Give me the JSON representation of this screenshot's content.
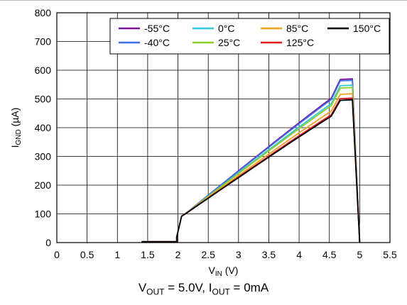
{
  "chart_data": {
    "type": "line",
    "xlabel": {
      "main": "V",
      "sub": "IN",
      "unit": " (V)"
    },
    "ylabel": {
      "main": "I",
      "sub": "GND",
      "unit": " (µA)"
    },
    "xlim": [
      0,
      5.5
    ],
    "ylim": [
      0,
      800
    ],
    "x_ticks": [
      "0",
      "0.5",
      "1",
      "1.5",
      "2",
      "2.5",
      "3",
      "3.5",
      "4",
      "4.5",
      "5",
      "5.5"
    ],
    "y_ticks": [
      "0",
      "100",
      "200",
      "300",
      "400",
      "500",
      "600",
      "700",
      "800"
    ],
    "grid": true,
    "legend_position": "top-right",
    "series": [
      {
        "name": "-55°C",
        "color": "#7a0f9c",
        "peak_x": 4.88,
        "peak_y": 570
      },
      {
        "name": "-40°C",
        "color": "#3f6fe6",
        "peak_x": 4.88,
        "peak_y": 565
      },
      {
        "name": "0°C",
        "color": "#33c6d9",
        "peak_x": 4.88,
        "peak_y": 548
      },
      {
        "name": "25°C",
        "color": "#8ccf2a",
        "peak_x": 4.88,
        "peak_y": 540
      },
      {
        "name": "85°C",
        "color": "#f3a024",
        "peak_x": 4.88,
        "peak_y": 518
      },
      {
        "name": "125°C",
        "color": "#e3161d",
        "peak_x": 4.88,
        "peak_y": 503
      },
      {
        "name": "150°C",
        "color": "#000000",
        "peak_x": 4.88,
        "peak_y": 497
      }
    ],
    "shared_shape": {
      "off_until_x": 1.4,
      "low_level_y": 3,
      "threshold_x": 1.98,
      "threshold_y": 20,
      "step_x": 2.06,
      "step_y": 92,
      "ramp_start_x": 2.1,
      "dropout_x": 5.0
    }
  },
  "caption": {
    "v_main": "V",
    "v_sub": "OUT",
    "v_rest": " = 5.0V, ",
    "i_main": "I",
    "i_sub": "OUT",
    "i_rest": " = 0mA"
  }
}
